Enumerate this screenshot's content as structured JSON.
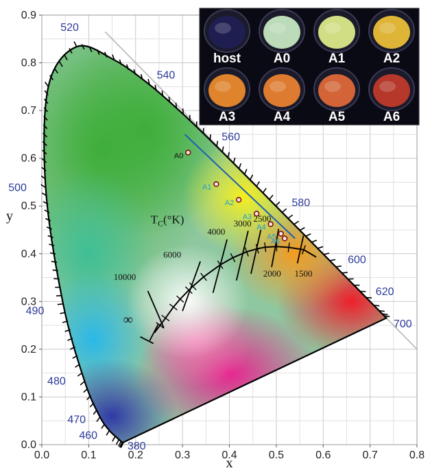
{
  "chart_data": {
    "type": "scatter",
    "title": "",
    "xlabel": "x",
    "ylabel": "y",
    "xlim": [
      0.0,
      0.8
    ],
    "ylim": [
      0.0,
      0.9
    ],
    "grid": true,
    "x_ticks": [
      "0.0",
      "0.1",
      "0.2",
      "0.3",
      "0.4",
      "0.5",
      "0.6",
      "0.7",
      "0.8"
    ],
    "y_ticks": [
      "0.0",
      "0.1",
      "0.2",
      "0.3",
      "0.4",
      "0.5",
      "0.6",
      "0.7",
      "0.8",
      "0.9"
    ],
    "spectral_locus": [
      [
        0.1741,
        0.005
      ],
      [
        0.174,
        0.005
      ],
      [
        0.1738,
        0.0049
      ],
      [
        0.1736,
        0.0049
      ],
      [
        0.1733,
        0.0048
      ],
      [
        0.1726,
        0.0048
      ],
      [
        0.1714,
        0.0051
      ],
      [
        0.1689,
        0.0069
      ],
      [
        0.1644,
        0.0109
      ],
      [
        0.1566,
        0.0177
      ],
      [
        0.144,
        0.0297
      ],
      [
        0.1241,
        0.0578
      ],
      [
        0.0913,
        0.1327
      ],
      [
        0.0454,
        0.295
      ],
      [
        0.0082,
        0.5384
      ],
      [
        0.0139,
        0.7502
      ],
      [
        0.0743,
        0.8338
      ],
      [
        0.1547,
        0.8059
      ],
      [
        0.2296,
        0.7543
      ],
      [
        0.3016,
        0.6923
      ],
      [
        0.3731,
        0.6245
      ],
      [
        0.4441,
        0.5547
      ],
      [
        0.5125,
        0.4866
      ],
      [
        0.5752,
        0.4242
      ],
      [
        0.627,
        0.3725
      ],
      [
        0.6658,
        0.334
      ],
      [
        0.6915,
        0.3083
      ],
      [
        0.7079,
        0.292
      ],
      [
        0.719,
        0.2809
      ],
      [
        0.726,
        0.274
      ],
      [
        0.73,
        0.27
      ],
      [
        0.7347,
        0.2653
      ]
    ],
    "wavelength_labels": [
      {
        "nm": "380",
        "x": 0.1741,
        "y": 0.005
      },
      {
        "nm": "460",
        "x": 0.144,
        "y": 0.0297
      },
      {
        "nm": "470",
        "x": 0.1241,
        "y": 0.0578
      },
      {
        "nm": "480",
        "x": 0.0913,
        "y": 0.1327
      },
      {
        "nm": "490",
        "x": 0.0454,
        "y": 0.295
      },
      {
        "nm": "500",
        "x": 0.0082,
        "y": 0.5384
      },
      {
        "nm": "520",
        "x": 0.0743,
        "y": 0.8338
      },
      {
        "nm": "540",
        "x": 0.2296,
        "y": 0.7543
      },
      {
        "nm": "560",
        "x": 0.3731,
        "y": 0.6245
      },
      {
        "nm": "580",
        "x": 0.5125,
        "y": 0.4866
      },
      {
        "nm": "600",
        "x": 0.627,
        "y": 0.3725
      },
      {
        "nm": "620",
        "x": 0.6915,
        "y": 0.3083
      },
      {
        "nm": "700",
        "x": 0.7347,
        "y": 0.2653
      }
    ],
    "planckian_locus": [
      [
        0.2399,
        0.2343
      ],
      [
        0.2521,
        0.25
      ],
      [
        0.2637,
        0.2652
      ],
      [
        0.2806,
        0.2883
      ],
      [
        0.295,
        0.305
      ],
      [
        0.3135,
        0.3237
      ],
      [
        0.3221,
        0.3318
      ],
      [
        0.3451,
        0.3516
      ],
      [
        0.3805,
        0.3768
      ],
      [
        0.4073,
        0.3917
      ],
      [
        0.4369,
        0.4041
      ],
      [
        0.4596,
        0.4105
      ],
      [
        0.4764,
        0.4137
      ],
      [
        0.5008,
        0.4151
      ],
      [
        0.5267,
        0.4133
      ],
      [
        0.5586,
        0.4084
      ],
      [
        0.585,
        0.393
      ]
    ],
    "isotherms": [
      {
        "label": "∞",
        "x1": 0.23,
        "y1": 0.218,
        "x2": 0.248,
        "y2": 0.252
      },
      {
        "label": "10000",
        "x1": 0.26,
        "y1": 0.245,
        "x2": 0.226,
        "y2": 0.322
      },
      {
        "label": "6000",
        "x1": 0.3,
        "y1": 0.28,
        "x2": 0.338,
        "y2": 0.384
      },
      {
        "label": "4000",
        "x1": 0.365,
        "y1": 0.318,
        "x2": 0.395,
        "y2": 0.43
      },
      {
        "label": "3000",
        "x1": 0.415,
        "y1": 0.344,
        "x2": 0.44,
        "y2": 0.448
      },
      {
        "label": "2500",
        "x1": 0.446,
        "y1": 0.358,
        "x2": 0.467,
        "y2": 0.45
      },
      {
        "label": "2000",
        "x1": 0.49,
        "y1": 0.372,
        "x2": 0.505,
        "y2": 0.452
      },
      {
        "label": "1500",
        "x1": 0.545,
        "y1": 0.38,
        "x2": 0.558,
        "y2": 0.438
      }
    ],
    "cct_labels": [
      {
        "text": "10000",
        "x": 0.177,
        "y": 0.345
      },
      {
        "text": "6000",
        "x": 0.278,
        "y": 0.392
      },
      {
        "text": "4000",
        "x": 0.372,
        "y": 0.44
      },
      {
        "text": "3000",
        "x": 0.428,
        "y": 0.457
      },
      {
        "text": "2500",
        "x": 0.47,
        "y": 0.467
      },
      {
        "text": "2000",
        "x": 0.491,
        "y": 0.352
      },
      {
        "text": "1500",
        "x": 0.558,
        "y": 0.352
      },
      {
        "text": "∞",
        "x": 0.184,
        "y": 0.253
      }
    ],
    "tc_label": "T",
    "tc_sub": "C",
    "tc_unit": "(°K)",
    "tc_pos": {
      "x": 0.232,
      "y": 0.464
    },
    "trend_line": {
      "x1": 0.305,
      "y1": 0.65,
      "x2": 0.54,
      "y2": 0.432
    },
    "series": [
      {
        "name": "A0",
        "x": 0.312,
        "y": 0.612,
        "label_color": "#111111"
      },
      {
        "name": "A1",
        "x": 0.372,
        "y": 0.546,
        "label_color": "#1e9fd0"
      },
      {
        "name": "A2",
        "x": 0.42,
        "y": 0.513,
        "label_color": "#1e9fd0"
      },
      {
        "name": "A3",
        "x": 0.458,
        "y": 0.484,
        "label_color": "#1e9fd0"
      },
      {
        "name": "A4",
        "x": 0.488,
        "y": 0.462,
        "label_color": "#1e9fd0"
      },
      {
        "name": "A5",
        "x": 0.51,
        "y": 0.442,
        "label_color": "#1e9fd0"
      },
      {
        "name": "A6",
        "x": 0.518,
        "y": 0.432,
        "label_color": "#1e9fd0"
      }
    ],
    "inset_labels": [
      "host",
      "A0",
      "A1",
      "A2",
      "A3",
      "A4",
      "A5",
      "A6"
    ],
    "inset_glow_colors": [
      "#1e1e55",
      "#c9ecc6",
      "#e2ef8c",
      "#f0c23a",
      "#f08c2c",
      "#ee8431",
      "#e26a3a",
      "#c23b2a"
    ]
  }
}
